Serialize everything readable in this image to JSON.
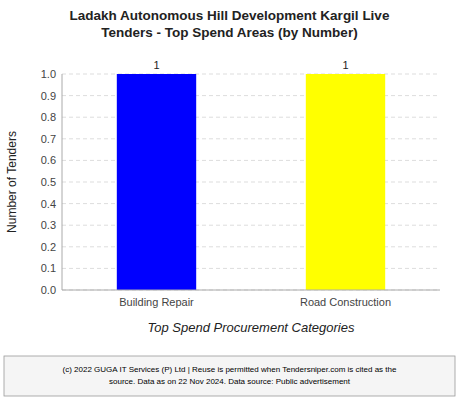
{
  "chart_data": {
    "type": "bar",
    "title": "Ladakh Autonomous Hill Development Kargil Live\nTenders - Top Spend Areas (by Number)",
    "categories": [
      "Building Repair",
      "Road Construction"
    ],
    "values": [
      1,
      1
    ],
    "colors": [
      "#0000FF",
      "#FFFF00"
    ],
    "ylabel": "Number of Tenders",
    "xlabel": "Top Spend Procurement Categories",
    "ylim": [
      0,
      1.0
    ],
    "yticks": [
      {
        "value": 0.0,
        "label": "0.0"
      },
      {
        "value": 0.1,
        "label": "0.1"
      },
      {
        "value": 0.2,
        "label": "0.2"
      },
      {
        "value": 0.3,
        "label": "0.3"
      },
      {
        "value": 0.4,
        "label": "0.4"
      },
      {
        "value": 0.5,
        "label": "0.5"
      },
      {
        "value": 0.6,
        "label": "0.6"
      },
      {
        "value": 0.7,
        "label": "0.7"
      },
      {
        "value": 0.8,
        "label": "0.8"
      },
      {
        "value": 0.9,
        "label": "0.9"
      },
      {
        "value": 1.0,
        "label": "1.0"
      }
    ],
    "grid": true,
    "data_labels": true,
    "annotations": [
      "(c) 2022 GUGA IT Services (P) Ltd | Reuse is permitted when Tendersniper.com is cited as the\nsource. Data as on 22 Nov 2024. Data source: Public advertisement"
    ]
  }
}
